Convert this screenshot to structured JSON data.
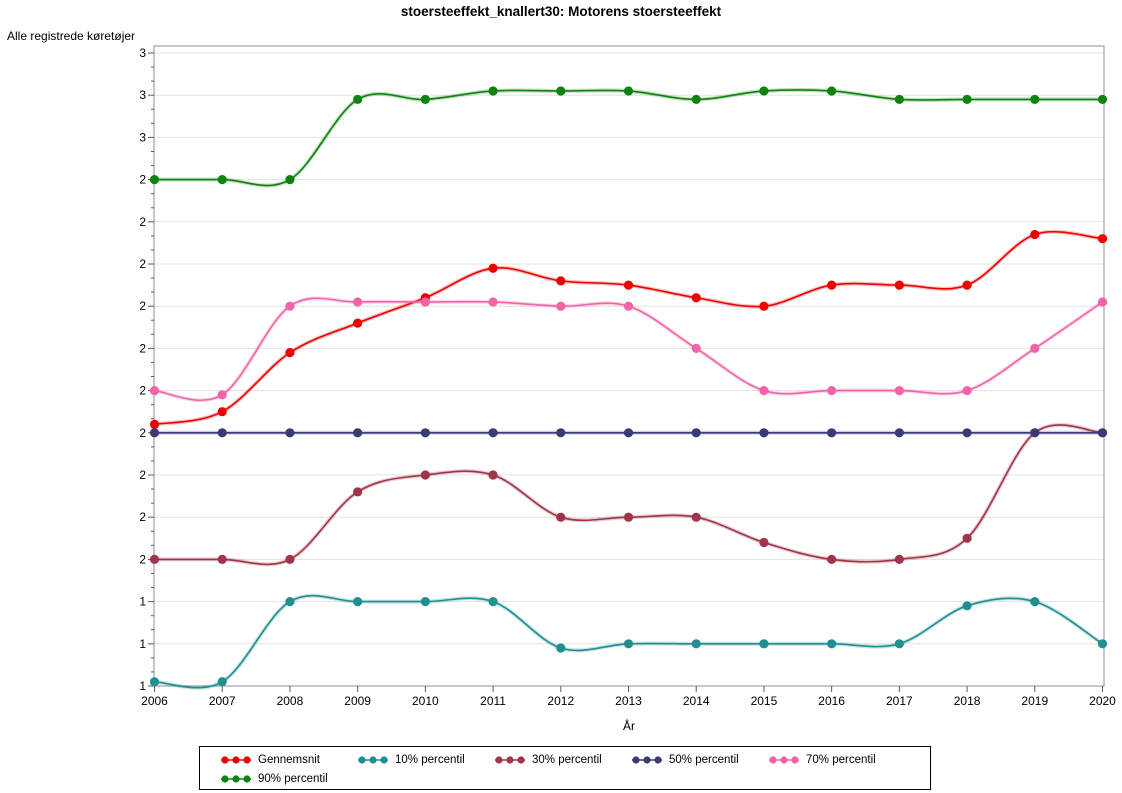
{
  "chart_data": {
    "type": "line",
    "title": "stoersteeffekt_knallert30: Motorens stoersteeffekt",
    "xlabel": "År",
    "ylabel": "Alle registrede køretøjer",
    "x": [
      2006,
      2007,
      2008,
      2009,
      2010,
      2011,
      2012,
      2013,
      2014,
      2015,
      2016,
      2017,
      2018,
      2019,
      2020
    ],
    "x_tick_labels": [
      "2006",
      "2007",
      "2008",
      "2009",
      "2010",
      "2011",
      "2012",
      "2013",
      "2014",
      "2015",
      "2016",
      "2017",
      "2018",
      "2019",
      "2020"
    ],
    "y_axis": {
      "min": 1.2,
      "max": 2.7,
      "major_step": 0.1,
      "minor_ticks_per_major": 2,
      "tick_labels_top_to_bottom": [
        "3",
        "3",
        "3",
        "2",
        "2",
        "2",
        "2",
        "2",
        "2",
        "2",
        "2",
        "2",
        "2",
        "1",
        "1",
        "1"
      ]
    },
    "grid": true,
    "legend_position": "bottom",
    "legend_rows": [
      [
        0,
        1,
        2,
        3,
        4
      ],
      [
        5
      ]
    ],
    "series": [
      {
        "name": "Gennemsnit",
        "color": "#EC0000",
        "values": [
          1.82,
          1.85,
          1.99,
          2.06,
          2.12,
          2.19,
          2.16,
          2.15,
          2.12,
          2.1,
          2.15,
          2.15,
          2.15,
          2.27,
          2.26
        ]
      },
      {
        "name": "10% percentil",
        "color": "#218F8F",
        "values": [
          1.21,
          1.21,
          1.4,
          1.4,
          1.4,
          1.4,
          1.29,
          1.3,
          1.3,
          1.3,
          1.3,
          1.3,
          1.39,
          1.4,
          1.3
        ]
      },
      {
        "name": "30% percentil",
        "color": "#A03448",
        "values": [
          1.5,
          1.5,
          1.5,
          1.66,
          1.7,
          1.7,
          1.6,
          1.6,
          1.6,
          1.54,
          1.5,
          1.5,
          1.55,
          1.8,
          1.8
        ]
      },
      {
        "name": "50% percentil",
        "color": "#3B3B74",
        "values": [
          1.8,
          1.8,
          1.8,
          1.8,
          1.8,
          1.8,
          1.8,
          1.8,
          1.8,
          1.8,
          1.8,
          1.8,
          1.8,
          1.8,
          1.8
        ]
      },
      {
        "name": "70% percentil",
        "color": "#F263A8",
        "values": [
          1.9,
          1.89,
          2.1,
          2.11,
          2.11,
          2.11,
          2.1,
          2.1,
          2.0,
          1.9,
          1.9,
          1.9,
          1.9,
          2.0,
          2.11
        ]
      },
      {
        "name": "90% percentil",
        "color": "#0F820F",
        "values": [
          2.4,
          2.4,
          2.4,
          2.59,
          2.59,
          2.61,
          2.61,
          2.61,
          2.59,
          2.61,
          2.61,
          2.59,
          2.59,
          2.59,
          2.59
        ]
      }
    ],
    "style": {
      "background": "#ffffff",
      "grid_color": "#e3e3e3",
      "frame_color": "#8f8f8f",
      "tick_color": "#595959",
      "text_color": "#000000"
    }
  }
}
